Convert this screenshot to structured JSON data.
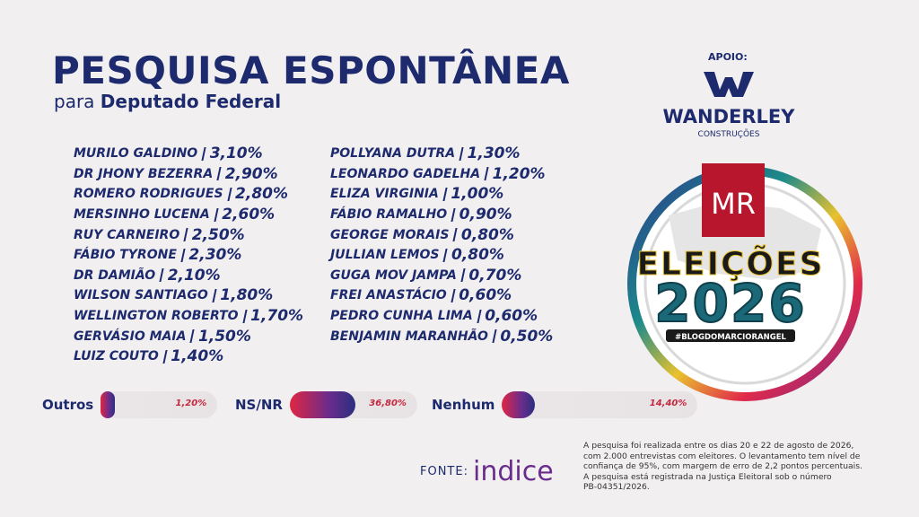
{
  "header": {
    "title": "PESQUISA ESPONTÂNEA",
    "subtitle_prefix": "para",
    "subtitle": "Deputado Federal"
  },
  "list": {
    "columns": [
      [
        {
          "name": "MURILO GALDINO",
          "percent": "3,10%"
        },
        {
          "name": "DR JHONY BEZERRA",
          "percent": "2,90%"
        },
        {
          "name": "ROMERO RODRIGUES",
          "percent": "2,80%"
        },
        {
          "name": "MERSINHO LUCENA",
          "percent": "2,60%"
        },
        {
          "name": "RUY CARNEIRO",
          "percent": "2,50%"
        },
        {
          "name": "FÁBIO TYRONE",
          "percent": "2,30%"
        },
        {
          "name": "DR DAMIÃO",
          "percent": "2,10%"
        },
        {
          "name": "WILSON SANTIAGO",
          "percent": "1,80%"
        },
        {
          "name": "WELLINGTON ROBERTO",
          "percent": "1,70%"
        },
        {
          "name": "GERVÁSIO MAIA",
          "percent": "1,50%"
        },
        {
          "name": "LUIZ COUTO",
          "percent": "1,40%"
        }
      ],
      [
        {
          "name": "POLLYANA DUTRA",
          "percent": "1,30%"
        },
        {
          "name": "LEONARDO GADELHA",
          "percent": "1,20%"
        },
        {
          "name": "ELIZA VIRGINIA",
          "percent": "1,00%"
        },
        {
          "name": "FÁBIO RAMALHO",
          "percent": "0,90%"
        },
        {
          "name": "GEORGE MORAIS",
          "percent": "0,80%"
        },
        {
          "name": "JULLIAN LEMOS",
          "percent": "0,80%"
        },
        {
          "name": "GUGA MOV JAMPA",
          "percent": "0,70%"
        },
        {
          "name": "FREI ANASTÁCIO",
          "percent": "0,60%"
        },
        {
          "name": "PEDRO CUNHA LIMA",
          "percent": "0,60%"
        },
        {
          "name": "BENJAMIN MARANHÃO",
          "percent": "0,50%"
        }
      ]
    ]
  },
  "summary": [
    {
      "label": "Outros",
      "value": 1.2,
      "value_label": "1,20%"
    },
    {
      "label": "NS/NR",
      "value": 36.8,
      "value_label": "36,80%"
    },
    {
      "label": "Nenhum",
      "value": 14.4,
      "value_label": "14,40%"
    }
  ],
  "sponsor": {
    "label": "APOIO:",
    "company": "WANDERLEY",
    "sub": "CONSTRUÇÕES"
  },
  "badge": {
    "mark": "MR",
    "title": "ELEIÇÕES",
    "year": "2026",
    "hashtag": "#BLOGDOMARCIORANGEL"
  },
  "footer": {
    "fonte": "FONTE:",
    "source": "indice",
    "note": [
      "A pesquisa foi realizada entre os dias 20 e 22 de agosto de 2026,",
      "com 2.000 entrevistas com eleitores. O levantamento tem nível de",
      "confiança de 95%, com margem de erro de 2,2 pontos percentuais.",
      "A pesquisa está registrada na Justiça Eleitoral sob o número",
      "PB-04351/2026."
    ]
  }
}
